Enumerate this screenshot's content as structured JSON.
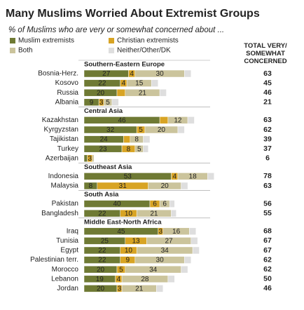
{
  "chart_data": {
    "type": "stacked-bar",
    "title": "Many Muslims Worried About Extremist Groups",
    "subtitle": "% of Muslims who are very or somewhat concerned about ...",
    "totals_header": "TOTAL VERY/ SOMEWHAT CONCERNED",
    "groups": [
      {
        "name": "Southern-Eastern Europe",
        "categories": [
          "Bosnia-Herz.",
          "Kosovo",
          "Russia",
          "Albania"
        ],
        "totals": [
          63,
          45,
          46,
          21
        ]
      },
      {
        "name": "Central Asia",
        "categories": [
          "Kazakhstan",
          "Kyrgyzstan",
          "Tajikistan",
          "Turkey",
          "Azerbaijan"
        ],
        "totals": [
          63,
          62,
          39,
          37,
          6
        ]
      },
      {
        "name": "Southeast Asia",
        "categories": [
          "Indonesia",
          "Malaysia"
        ],
        "totals": [
          78,
          63
        ]
      },
      {
        "name": "South Asia",
        "categories": [
          "Pakistan",
          "Bangladesh"
        ],
        "totals": [
          56,
          55
        ]
      },
      {
        "name": "Middle East-North Africa",
        "categories": [
          "Iraq",
          "Tunisia",
          "Egypt",
          "Palestinian terr.",
          "Morocco",
          "Lebanon",
          "Jordan"
        ],
        "totals": [
          68,
          67,
          67,
          62,
          62,
          50,
          46
        ]
      }
    ],
    "series": [
      {
        "name": "Muslim extremists",
        "color": "#6f7a34",
        "values": [
          [
            27,
            22,
            20,
            9
          ],
          [
            46,
            32,
            24,
            23,
            2
          ],
          [
            53,
            8
          ],
          [
            40,
            22
          ],
          [
            45,
            25,
            22,
            22,
            20,
            19,
            20
          ]
        ],
        "value_labels": [
          [
            "27",
            "22",
            "20",
            "9"
          ],
          [
            "46",
            "32",
            "24",
            "23",
            null
          ],
          [
            "53",
            "8"
          ],
          [
            "40",
            "22"
          ],
          [
            "45",
            "25",
            "22",
            "22",
            "20",
            "19",
            "20"
          ]
        ]
      },
      {
        "name": "Christian extremists",
        "color": "#d8a424",
        "values": [
          [
            4,
            4,
            5,
            3
          ],
          [
            5,
            5,
            4,
            8,
            3
          ],
          [
            4,
            31
          ],
          [
            6,
            10
          ],
          [
            3,
            13,
            10,
            9,
            5,
            4,
            3
          ]
        ],
        "value_labels": [
          [
            "4",
            "4",
            null,
            "3"
          ],
          [
            null,
            "5",
            null,
            "8",
            "3"
          ],
          [
            "4",
            "31"
          ],
          [
            "6",
            "10"
          ],
          [
            "3",
            "13",
            "10",
            "9",
            "5",
            "4",
            "3"
          ]
        ]
      },
      {
        "name": "Both",
        "color": "#cbc49c",
        "values": [
          [
            30,
            15,
            21,
            5
          ],
          [
            12,
            20,
            8,
            5,
            1
          ],
          [
            18,
            20
          ],
          [
            6,
            21
          ],
          [
            16,
            27,
            34,
            30,
            34,
            28,
            21
          ]
        ],
        "value_labels": [
          [
            "30",
            "15",
            "21",
            "5"
          ],
          [
            "12",
            "20",
            "8",
            "5",
            null
          ],
          [
            "18",
            "20"
          ],
          [
            "6",
            "21"
          ],
          [
            "16",
            "27",
            "34",
            "30",
            "34",
            "28",
            "21"
          ]
        ]
      },
      {
        "name": "Neither/Other/DK",
        "color": "#dedede",
        "values": [
          [
            4,
            4,
            4,
            4
          ],
          [
            4,
            4,
            4,
            3,
            0
          ],
          [
            4,
            4
          ],
          [
            3,
            3
          ],
          [
            4,
            4,
            4,
            4,
            4,
            4,
            4
          ]
        ]
      }
    ]
  }
}
